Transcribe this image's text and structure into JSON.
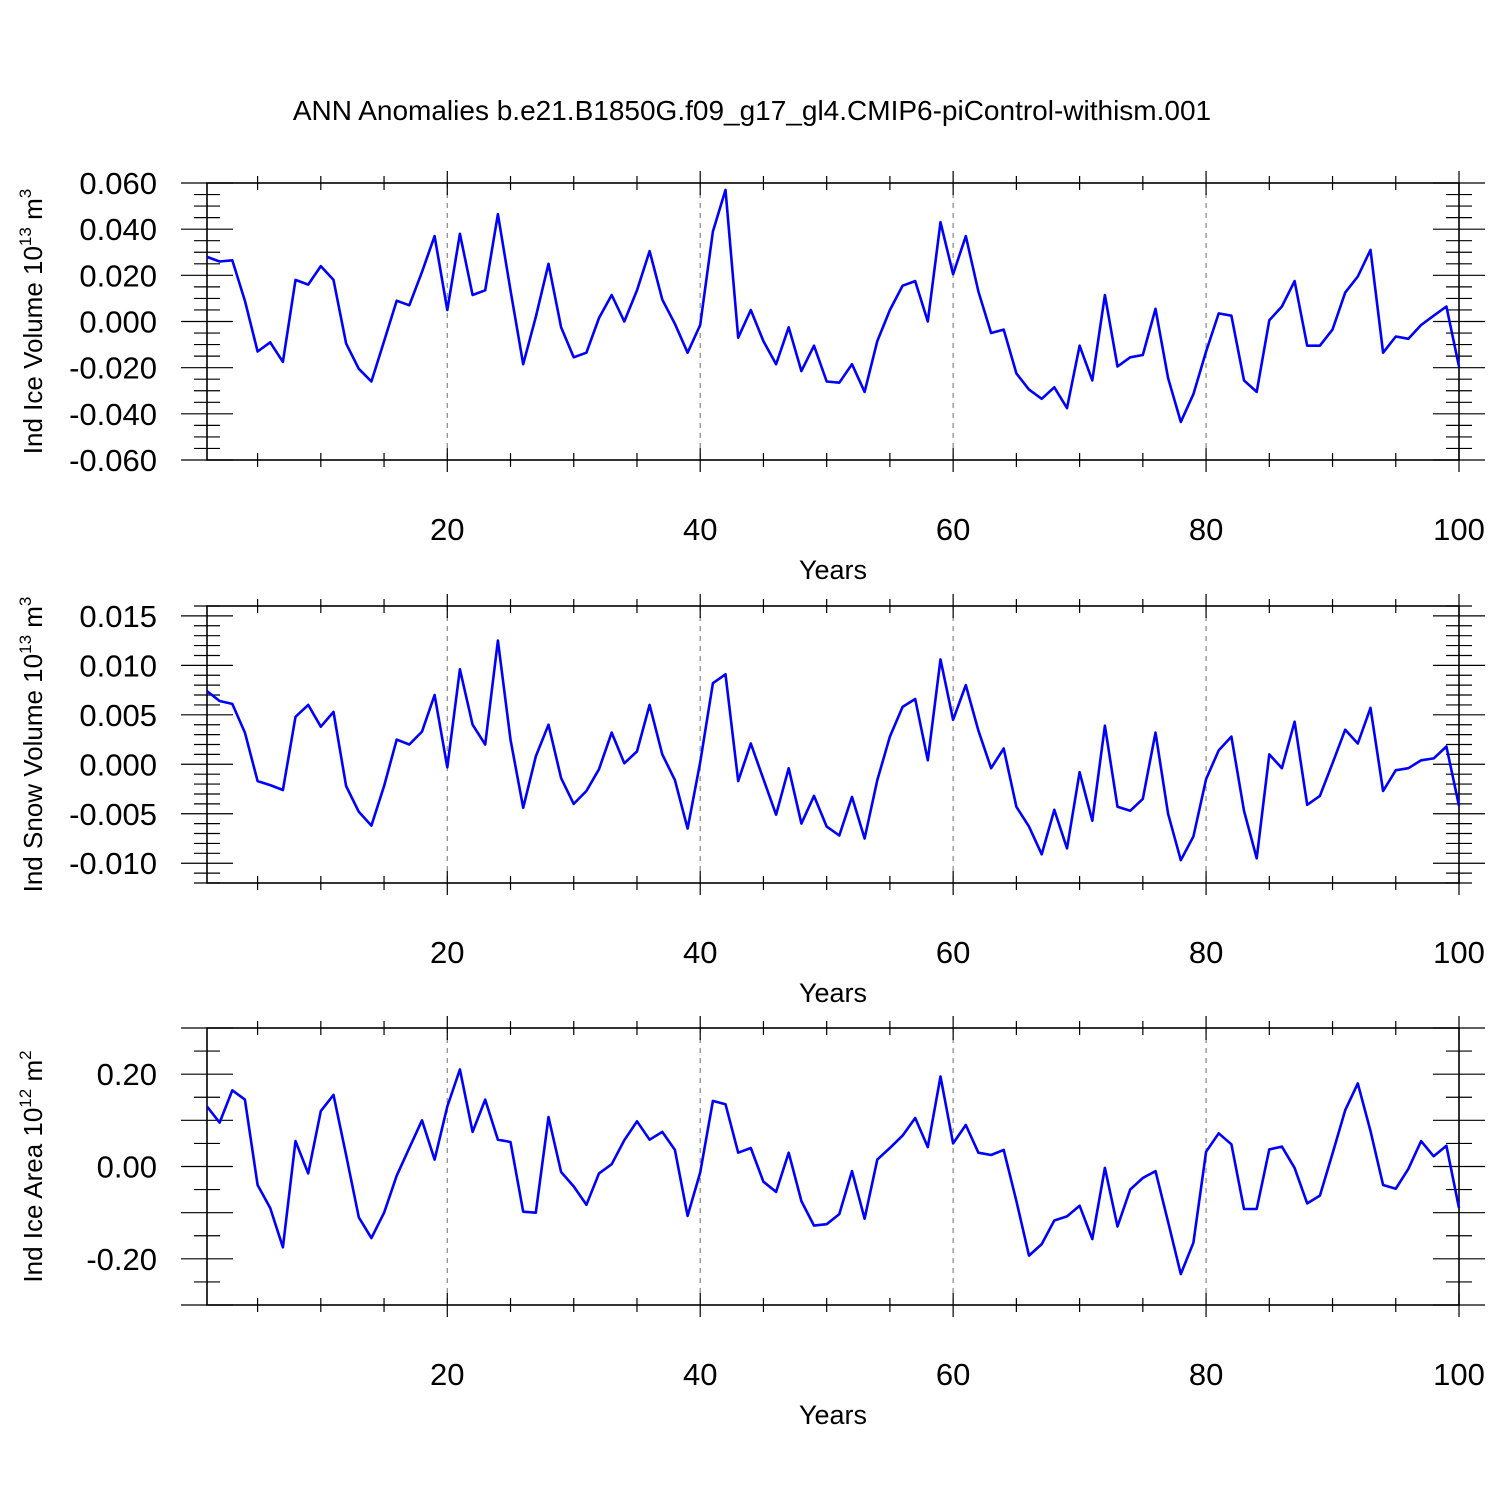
{
  "title": "ANN Anomalies b.e21.B1850G.f09_g17_gl4.CMIP6-piControl-withism.001",
  "chart_data": [
    {
      "type": "line",
      "ylabel": "Ind Ice Volume 10",
      "ylabel_exp": "13",
      "ylabel_unit": " m",
      "ylabel_unit_exp": "3",
      "xlabel": "Years",
      "xlim": [
        1,
        100
      ],
      "ylim": [
        -0.06,
        0.06
      ],
      "xticks": [
        "20",
        "40",
        "60",
        "80",
        "100"
      ],
      "yticks": [
        "0.060",
        "0.040",
        "0.020",
        "0.000",
        "-0.020",
        "-0.040",
        "-0.060"
      ],
      "line_color": "#0000ff",
      "values": [
        0.028,
        0.026,
        0.0265,
        0.009,
        -0.013,
        -0.009,
        -0.0175,
        0.018,
        0.016,
        0.024,
        0.018,
        -0.0095,
        -0.0205,
        -0.026,
        -0.0085,
        0.009,
        0.007,
        0.0215,
        0.037,
        0.005,
        0.038,
        0.0115,
        0.0135,
        0.0465,
        0.0135,
        -0.0185,
        0.002,
        0.025,
        -0.0025,
        -0.0155,
        -0.0135,
        0.0015,
        0.0115,
        0.0,
        0.0135,
        0.0305,
        0.0095,
        -0.001,
        -0.0135,
        -0.0015,
        0.039,
        0.057,
        -0.007,
        0.005,
        -0.0085,
        -0.0185,
        -0.0025,
        -0.0215,
        -0.0105,
        -0.026,
        -0.0265,
        -0.0185,
        -0.0305,
        -0.0085,
        0.005,
        0.0155,
        0.0175,
        0.0,
        0.043,
        0.0205,
        0.037,
        0.013,
        -0.005,
        -0.0035,
        -0.0225,
        -0.0295,
        -0.0335,
        -0.0285,
        -0.0375,
        -0.0105,
        -0.0255,
        0.0115,
        -0.0195,
        -0.0155,
        -0.0145,
        0.0055,
        -0.0245,
        -0.0435,
        -0.0315,
        -0.013,
        0.0035,
        0.0025,
        -0.0255,
        -0.0305,
        0.0005,
        0.0065,
        0.0175,
        -0.0105,
        -0.0105,
        -0.0035,
        0.0125,
        0.0195,
        0.031,
        -0.0135,
        -0.0065,
        -0.0075,
        -0.0015,
        0.0025,
        0.0065,
        -0.0195
      ]
    },
    {
      "type": "line",
      "ylabel": "Ind Snow Volume 10",
      "ylabel_exp": "13",
      "ylabel_unit": " m",
      "ylabel_unit_exp": "3",
      "xlabel": "Years",
      "xlim": [
        1,
        100
      ],
      "ylim": [
        -0.012,
        0.016
      ],
      "xticks": [
        "20",
        "40",
        "60",
        "80",
        "100"
      ],
      "yticks": [
        "0.015",
        "0.010",
        "0.005",
        "0.000",
        "-0.005",
        "-0.010"
      ],
      "line_color": "#0000ff",
      "values": [
        0.0074,
        0.0064,
        0.0061,
        0.0032,
        -0.0017,
        -0.0021,
        -0.0026,
        0.0048,
        0.006,
        0.0038,
        0.0053,
        -0.0022,
        -0.0048,
        -0.0062,
        -0.0022,
        0.0025,
        0.002,
        0.0033,
        0.007,
        -0.0003,
        0.0096,
        0.004,
        0.002,
        0.0125,
        0.0025,
        -0.0044,
        0.0008,
        0.004,
        -0.0014,
        -0.004,
        -0.0027,
        -0.0005,
        0.0032,
        0.0001,
        0.0013,
        0.006,
        0.001,
        -0.0016,
        -0.0065,
        0.0002,
        0.0082,
        0.0091,
        -0.0017,
        0.0021,
        -0.0015,
        -0.0051,
        -0.0004,
        -0.006,
        -0.0032,
        -0.0063,
        -0.0072,
        -0.0033,
        -0.0075,
        -0.0016,
        0.0028,
        0.0058,
        0.0066,
        0.0004,
        0.0106,
        0.0045,
        0.008,
        0.0034,
        -0.0004,
        0.0016,
        -0.0043,
        -0.0063,
        -0.0091,
        -0.0046,
        -0.0085,
        -0.0008,
        -0.0057,
        0.0039,
        -0.0043,
        -0.0047,
        -0.0035,
        0.0032,
        -0.005,
        -0.0097,
        -0.0073,
        -0.0015,
        0.0014,
        0.0028,
        -0.0047,
        -0.0095,
        0.001,
        -0.0004,
        0.0043,
        -0.0041,
        -0.0032,
        0.0001,
        0.0035,
        0.0021,
        0.0057,
        -0.0027,
        -0.0006,
        -0.0004,
        0.0004,
        0.0006,
        0.0018,
        -0.0042
      ]
    },
    {
      "type": "line",
      "ylabel": "Ind Ice Area 10",
      "ylabel_exp": "12",
      "ylabel_unit": " m",
      "ylabel_unit_exp": "2",
      "xlabel": "Years",
      "xlim": [
        1,
        100
      ],
      "ylim": [
        -0.3,
        0.3
      ],
      "xticks": [
        "20",
        "40",
        "60",
        "80",
        "100"
      ],
      "yticks": [
        "0.20",
        "0.00",
        "-0.20"
      ],
      "line_color": "#0000ff",
      "values": [
        0.13,
        0.095,
        0.165,
        0.145,
        -0.04,
        -0.09,
        -0.175,
        0.055,
        -0.015,
        0.12,
        0.155,
        0.025,
        -0.11,
        -0.155,
        -0.1,
        -0.02,
        0.04,
        0.1,
        0.015,
        0.13,
        0.21,
        0.075,
        0.145,
        0.058,
        0.053,
        -0.098,
        -0.1,
        0.107,
        -0.012,
        -0.043,
        -0.083,
        -0.015,
        0.005,
        0.057,
        0.098,
        0.058,
        0.075,
        0.036,
        -0.107,
        -0.013,
        0.142,
        0.135,
        0.03,
        0.04,
        -0.033,
        -0.055,
        0.03,
        -0.075,
        -0.128,
        -0.125,
        -0.103,
        -0.01,
        -0.113,
        0.015,
        0.04,
        0.067,
        0.105,
        0.042,
        0.195,
        0.05,
        0.09,
        0.03,
        0.025,
        0.036,
        -0.075,
        -0.193,
        -0.168,
        -0.117,
        -0.108,
        -0.085,
        -0.157,
        -0.003,
        -0.13,
        -0.05,
        -0.025,
        -0.01,
        -0.12,
        -0.233,
        -0.165,
        0.032,
        0.072,
        0.048,
        -0.092,
        -0.092,
        0.037,
        0.043,
        -0.003,
        -0.08,
        -0.063,
        0.028,
        0.122,
        0.18,
        0.077,
        -0.04,
        -0.048,
        -0.005,
        0.055,
        0.022,
        0.045,
        -0.09
      ]
    }
  ]
}
